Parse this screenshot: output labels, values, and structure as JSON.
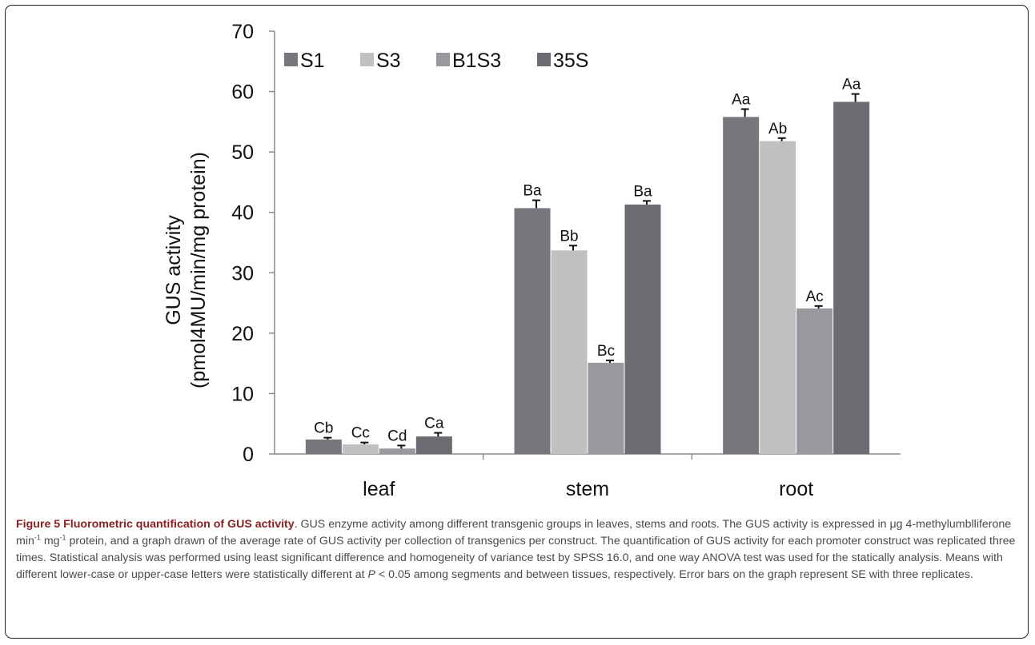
{
  "chart_data": {
    "type": "bar",
    "categories": [
      "leaf",
      "stem",
      "root"
    ],
    "series": [
      {
        "name": "S1",
        "color": "#76777c",
        "values": [
          2.4,
          40.7,
          55.8
        ],
        "errors": [
          0.3,
          1.3,
          1.3
        ],
        "labels": [
          "Cb",
          "Ba",
          "Aa"
        ]
      },
      {
        "name": "S3",
        "color": "#c0c0c0",
        "values": [
          1.6,
          33.7,
          51.8
        ],
        "errors": [
          0.3,
          0.8,
          0.5
        ],
        "labels": [
          "Cc",
          "Bb",
          "Ab"
        ]
      },
      {
        "name": "B1S3",
        "color": "#98999d",
        "values": [
          0.9,
          15.1,
          24.1
        ],
        "errors": [
          0.5,
          0.4,
          0.4
        ],
        "labels": [
          "Cd",
          "Bc",
          "Ac"
        ]
      },
      {
        "name": "35S",
        "color": "#6b6c71",
        "values": [
          2.9,
          41.3,
          58.3
        ],
        "errors": [
          0.6,
          0.6,
          1.3
        ],
        "labels": [
          "Ca",
          "Ba",
          "Aa"
        ]
      }
    ],
    "ylabel_line1": "GUS activity",
    "ylabel_line2": "(pmol4MU/min/mg protein)",
    "ylim": [
      0,
      70
    ],
    "yticks": [
      0,
      10,
      20,
      30,
      40,
      50,
      60,
      70
    ],
    "grid": false,
    "legend_placement": "top-left"
  },
  "caption": {
    "title": "Figure 5 Fluorometric quantification of GUS activity",
    "t1": ". GUS enzyme activity among different transgenic groups in leaves, stems and roots. The GUS activity is expressed in μg 4-methylumblliferone min",
    "sup1": "-1",
    "t2": " mg",
    "sup2": "-1",
    "t3": " protein, and a graph drawn of the average rate of GUS activity per collection of transgenics per construct. The quantification of GUS activity for each promoter construct was replicated three times. Statistical analysis was performed using least significant difference and homogeneity of variance test by SPSS 16.0, and one way ANOVA test was used for the statically analysis. Means with different lower-case or upper-case letters were statistically different at ",
    "p": "P",
    "t4": " < 0.05 among segments and between tissues, respectively. Error bars on the graph represent SE with three replicates."
  }
}
